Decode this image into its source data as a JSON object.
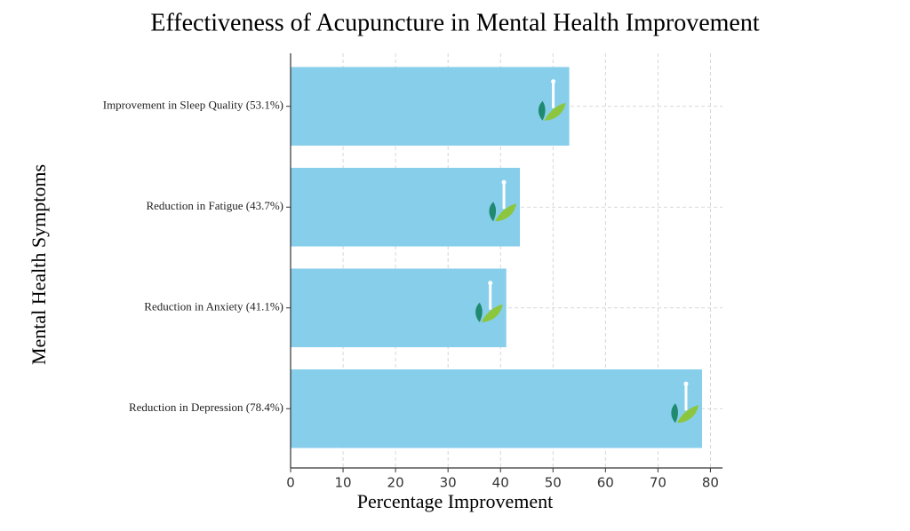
{
  "chart_data": {
    "type": "barh",
    "title": "Effectiveness of Acupuncture in Mental Health Improvement",
    "x_label": "Percentage Improvement",
    "y_label": "Mental Health Symptoms",
    "categories": [
      "Improvement in Sleep Quality (53.1%)",
      "Reduction in Fatigue (43.7%)",
      "Reduction in Anxiety (41.1%)",
      "Reduction in Depression (78.4%)"
    ],
    "values": [
      53.1,
      43.7,
      41.1,
      78.4
    ],
    "color": "#87ceeb",
    "xlim": [
      0,
      82.3
    ],
    "xticks": [
      0,
      10,
      20,
      30,
      40,
      50,
      60,
      70,
      80
    ],
    "grid": true
  }
}
